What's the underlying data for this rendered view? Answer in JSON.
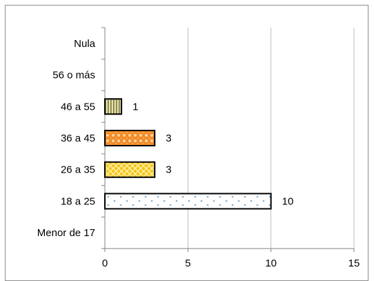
{
  "chart_data": {
    "type": "bar",
    "orientation": "horizontal",
    "categories": [
      "Menor de 17",
      "18 a 25",
      "26 a 35",
      "36 a 45",
      "46 a 55",
      "56 o más",
      "Nula"
    ],
    "values": [
      0,
      10,
      3,
      3,
      1,
      0,
      0
    ],
    "data_labels": [
      "",
      "10",
      "3",
      "3",
      "1",
      "",
      ""
    ],
    "xlim": [
      0,
      15
    ],
    "x_ticks": [
      0,
      5,
      10,
      15
    ],
    "x_tick_labels": [
      "0",
      "5",
      "10",
      "15"
    ],
    "grid": true,
    "legend": "none",
    "title": "",
    "xlabel": "",
    "ylabel": "",
    "bar_styles": [
      {
        "pattern": "none",
        "fill": "#ffffff",
        "accent": "#ffffff"
      },
      {
        "pattern": "dots",
        "fill": "#ffffff",
        "accent": "#7fb2d6"
      },
      {
        "pattern": "lattice",
        "fill": "#f5c518",
        "accent": "#fff2b0"
      },
      {
        "pattern": "weave",
        "fill": "#f28c28",
        "accent": "#ffd4a0"
      },
      {
        "pattern": "vstripes",
        "fill": "#e8e0b0",
        "accent": "#7a7a3a"
      },
      {
        "pattern": "none",
        "fill": "#ffffff",
        "accent": "#ffffff"
      },
      {
        "pattern": "none",
        "fill": "#ffffff",
        "accent": "#ffffff"
      }
    ]
  }
}
